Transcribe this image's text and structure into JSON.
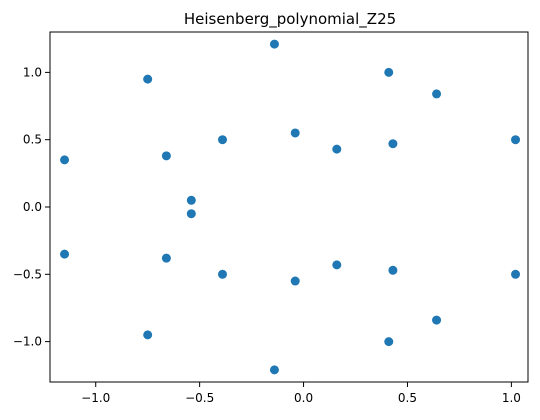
{
  "chart_data": {
    "type": "scatter",
    "title": "Heisenberg_polynomial_Z25",
    "xlabel": "",
    "ylabel": "",
    "xlim": [
      -1.22,
      1.08
    ],
    "ylim": [
      -1.3,
      1.3
    ],
    "xticks": [
      -1.0,
      -0.5,
      0.0,
      0.5,
      1.0
    ],
    "xtick_labels": [
      "−1.0",
      "−0.5",
      "0.0",
      "0.5",
      "1.0"
    ],
    "yticks": [
      -1.0,
      -0.5,
      0.0,
      0.5,
      1.0
    ],
    "ytick_labels": [
      "−1.0",
      "−0.5",
      "0.0",
      "0.5",
      "1.0"
    ],
    "grid": false,
    "marker_color": "#1f77b4",
    "series": [
      {
        "points": [
          [
            -0.14,
            1.21
          ],
          [
            -0.75,
            0.95
          ],
          [
            0.41,
            1.0
          ],
          [
            0.64,
            0.84
          ],
          [
            -0.04,
            0.55
          ],
          [
            -0.39,
            0.5
          ],
          [
            0.16,
            0.43
          ],
          [
            0.43,
            0.47
          ],
          [
            1.02,
            0.5
          ],
          [
            -1.15,
            0.35
          ],
          [
            -0.66,
            0.38
          ],
          [
            -0.54,
            0.05
          ],
          [
            -0.54,
            -0.05
          ],
          [
            -1.15,
            -0.35
          ],
          [
            -0.66,
            -0.38
          ],
          [
            -0.39,
            -0.5
          ],
          [
            -0.04,
            -0.55
          ],
          [
            0.16,
            -0.43
          ],
          [
            0.43,
            -0.47
          ],
          [
            1.02,
            -0.5
          ],
          [
            0.64,
            -0.84
          ],
          [
            -0.75,
            -0.95
          ],
          [
            0.41,
            -1.0
          ],
          [
            -0.14,
            -1.21
          ]
        ]
      }
    ]
  }
}
